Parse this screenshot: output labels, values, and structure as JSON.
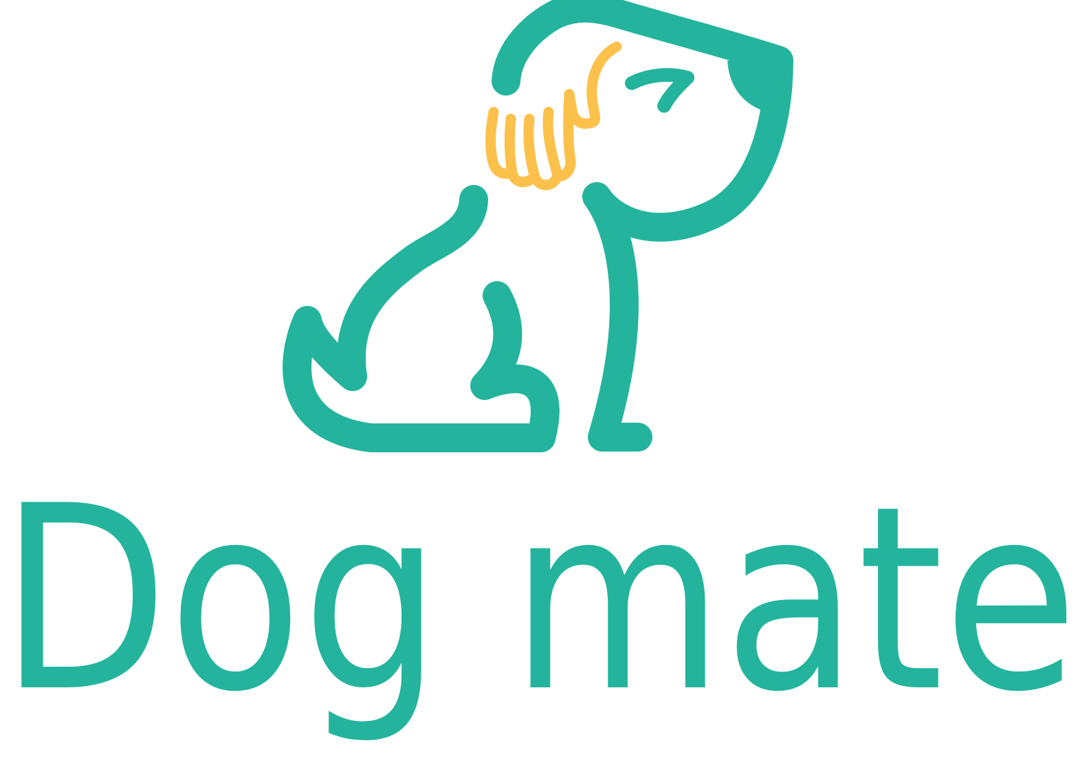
{
  "brand": {
    "name": "Dog mate",
    "colors": {
      "primary": "#24b49d",
      "accent": "#fbc14b",
      "background": "#ffffff"
    },
    "icon": "dog-outline-icon"
  }
}
